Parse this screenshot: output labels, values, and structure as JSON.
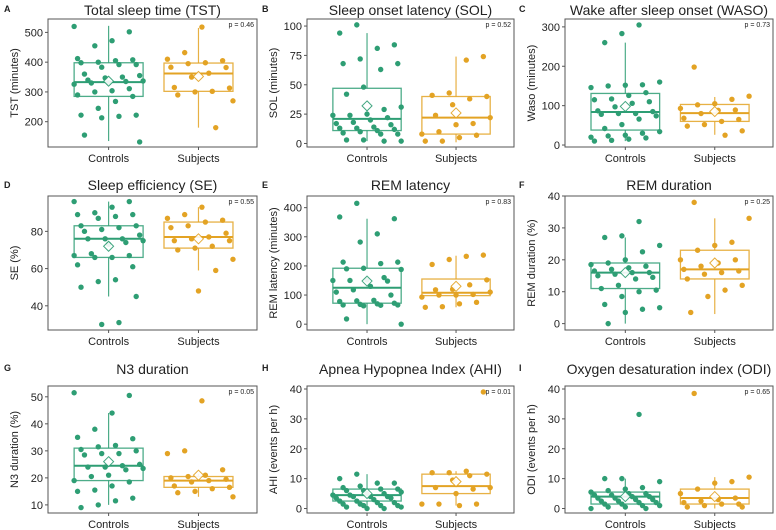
{
  "colors": {
    "controls": "#2e9e74",
    "subjects": "#e3a324",
    "axis": "#444444",
    "text": "#222222"
  },
  "chart_data": [
    {
      "panel": "A",
      "type": "box",
      "title": "Total sleep time (TST)",
      "ylabel": "TST (minutes)",
      "categories": [
        "Controls",
        "Subjects"
      ],
      "p_label": "p = 0.46",
      "ylim": [
        115,
        545
      ],
      "yticks": [
        200,
        300,
        400,
        500
      ],
      "series": [
        {
          "name": "Controls",
          "box": {
            "whislo": 135,
            "q1": 285,
            "median": 333,
            "q3": 398,
            "whishi": 522,
            "mean": 336
          },
          "points": [
            520,
            502,
            472,
            455,
            412,
            408,
            405,
            400,
            398,
            392,
            392,
            383,
            360,
            355,
            350,
            347,
            340,
            337,
            335,
            331,
            330,
            326,
            311,
            304,
            300,
            290,
            285,
            268,
            245,
            222,
            222,
            218,
            213,
            155,
            132
          ]
        },
        {
          "name": "Subjects",
          "box": {
            "whislo": 180,
            "q1": 302,
            "median": 362,
            "q3": 397,
            "whishi": 515,
            "mean": 352
          },
          "points": [
            518,
            432,
            410,
            405,
            398,
            395,
            383,
            382,
            363,
            350,
            315,
            313,
            302,
            300,
            290,
            270,
            180
          ]
        }
      ]
    },
    {
      "panel": "B",
      "type": "box",
      "title": "Sleep onset latency (SOL)",
      "ylabel": "SOL (minutes)",
      "categories": [
        "Controls",
        "Subjects"
      ],
      "p_label": "p = 0.52",
      "ylim": [
        -3,
        106
      ],
      "yticks": [
        0,
        25,
        50,
        75,
        100
      ],
      "series": [
        {
          "name": "Controls",
          "box": {
            "whislo": 2,
            "q1": 11,
            "median": 21,
            "q3": 47,
            "whishi": 94,
            "mean": 32
          },
          "points": [
            101,
            94,
            84,
            81,
            72,
            68,
            68,
            63,
            48,
            42,
            31,
            29,
            25,
            24,
            24,
            22,
            20,
            18,
            17,
            16,
            14,
            13,
            13,
            12,
            11,
            10,
            9,
            8,
            8,
            3,
            3,
            2,
            2
          ]
        },
        {
          "name": "Subjects",
          "box": {
            "whislo": 1,
            "q1": 8,
            "median": 22,
            "q3": 40,
            "whishi": 74,
            "mean": 26
          },
          "points": [
            74,
            71,
            43,
            41,
            40,
            38,
            33,
            24,
            22,
            17,
            16,
            10,
            8,
            7,
            5,
            2,
            2
          ]
        }
      ]
    },
    {
      "panel": "C",
      "type": "box",
      "title": "Wake after sleep onset (WASO)",
      "ylabel": "Waso (minutes)",
      "categories": [
        "Controls",
        "Subjects"
      ],
      "p_label": "p = 0.73",
      "ylim": [
        -5,
        320
      ],
      "yticks": [
        0,
        100,
        200,
        300
      ],
      "series": [
        {
          "name": "Controls",
          "box": {
            "whislo": 10,
            "q1": 38,
            "median": 84,
            "q3": 131,
            "whishi": 260,
            "mean": 98
          },
          "points": [
            305,
            283,
            260,
            160,
            153,
            152,
            150,
            146,
            133,
            126,
            117,
            115,
            110,
            106,
            97,
            87,
            85,
            80,
            80,
            78,
            74,
            66,
            52,
            42,
            34,
            30,
            25,
            23,
            20,
            18,
            15,
            12,
            10
          ]
        },
        {
          "name": "Subjects",
          "box": {
            "whislo": 26,
            "q1": 60,
            "median": 81,
            "q3": 103,
            "whishi": 122,
            "mean": 85
          },
          "points": [
            198,
            124,
            116,
            105,
            102,
            93,
            89,
            88,
            80,
            68,
            65,
            60,
            52,
            48,
            36,
            25
          ]
        }
      ]
    },
    {
      "panel": "D",
      "type": "box",
      "title": "Sleep efficiency (SE)",
      "ylabel": "SE (%)",
      "categories": [
        "Controls",
        "Subjects"
      ],
      "p_label": "p = 0.55",
      "ylim": [
        27,
        99
      ],
      "yticks": [
        40,
        60,
        80
      ],
      "series": [
        {
          "name": "Controls",
          "box": {
            "whislo": 45,
            "q1": 66,
            "median": 76,
            "q3": 83,
            "whishi": 96,
            "mean": 72
          },
          "points": [
            96,
            96,
            93,
            90,
            89,
            89,
            88,
            87,
            83,
            83,
            82,
            81,
            80,
            78,
            76,
            76,
            76,
            75,
            74,
            73,
            68,
            67,
            67,
            66,
            66,
            62,
            61,
            54,
            53,
            50,
            45,
            31,
            30
          ]
        },
        {
          "name": "Subjects",
          "box": {
            "whislo": 59,
            "q1": 71,
            "median": 77,
            "q3": 85,
            "whishi": 93,
            "mean": 76
          },
          "points": [
            93,
            89,
            87,
            86,
            85,
            83,
            82,
            79,
            77,
            76,
            75,
            75,
            72,
            71,
            70,
            65,
            59,
            48
          ]
        }
      ]
    },
    {
      "panel": "E",
      "type": "box",
      "title": "REM latency",
      "ylabel": "REM latency (minutes)",
      "categories": [
        "Controls",
        "Subjects"
      ],
      "p_label": "p = 0.83",
      "ylim": [
        -20,
        440
      ],
      "yticks": [
        0,
        100,
        200,
        300,
        400
      ],
      "series": [
        {
          "name": "Controls",
          "box": {
            "whislo": 0,
            "q1": 72,
            "median": 125,
            "q3": 192,
            "whishi": 362,
            "mean": 148
          },
          "points": [
            415,
            368,
            362,
            310,
            282,
            213,
            213,
            208,
            192,
            190,
            188,
            160,
            152,
            150,
            150,
            148,
            130,
            118,
            110,
            100,
            82,
            80,
            78,
            72,
            70,
            68,
            66,
            66,
            65,
            63,
            18,
            0
          ]
        },
        {
          "name": "Subjects",
          "box": {
            "whislo": 58,
            "q1": 98,
            "median": 108,
            "q3": 155,
            "whishi": 235,
            "mean": 130
          },
          "points": [
            237,
            233,
            222,
            205,
            152,
            135,
            120,
            118,
            110,
            102,
            100,
            100,
            93,
            75,
            70,
            60,
            58
          ]
        }
      ]
    },
    {
      "panel": "F",
      "type": "box",
      "title": "REM duration",
      "ylabel": "REM duration (%)",
      "categories": [
        "Controls",
        "Subjects"
      ],
      "p_label": "p = 0.25",
      "ylim": [
        -2,
        40
      ],
      "yticks": [
        0,
        10,
        20,
        30,
        40
      ],
      "series": [
        {
          "name": "Controls",
          "box": {
            "whislo": 0,
            "q1": 11,
            "median": 16,
            "q3": 19,
            "whishi": 27,
            "mean": 16
          },
          "points": [
            32,
            27.5,
            27,
            24.5,
            22.5,
            20,
            19,
            18.5,
            18,
            17.5,
            17,
            16.5,
            16,
            16,
            15.5,
            15,
            14.5,
            14,
            12,
            11,
            10.5,
            10,
            8.5,
            6,
            5,
            4.5,
            3.5,
            0
          ]
        },
        {
          "name": "Subjects",
          "box": {
            "whislo": 3,
            "q1": 14,
            "median": 17,
            "q3": 23,
            "whishi": 33,
            "mean": 19
          },
          "points": [
            38,
            33,
            25.5,
            24.5,
            23,
            20,
            20,
            19,
            18,
            17,
            16.5,
            16,
            15.5,
            14,
            12,
            10.5,
            8.5,
            3.5
          ]
        }
      ]
    },
    {
      "panel": "G",
      "type": "box",
      "title": "N3 duration",
      "ylabel": "N3 duration (%)",
      "categories": [
        "Controls",
        "Subjects"
      ],
      "p_label": "p = 0.05",
      "ylim": [
        7,
        54
      ],
      "yticks": [
        10,
        20,
        30,
        40,
        50
      ],
      "series": [
        {
          "name": "Controls",
          "box": {
            "whislo": 10,
            "q1": 19,
            "median": 24.5,
            "q3": 31,
            "whishi": 44,
            "mean": 26
          },
          "points": [
            51.5,
            50.5,
            44,
            38,
            35,
            34.5,
            32,
            31.5,
            30.5,
            30,
            29,
            29,
            28.5,
            25,
            24.5,
            24,
            24,
            23.5,
            23,
            21,
            20.5,
            19,
            18.5,
            17,
            15.5,
            15,
            12.5,
            11.5,
            10,
            9
          ]
        },
        {
          "name": "Subjects",
          "box": {
            "whislo": 13,
            "q1": 16.5,
            "median": 19,
            "q3": 20.5,
            "whishi": 21.5,
            "mean": 21
          },
          "points": [
            48.5,
            30,
            29,
            23,
            21,
            20.5,
            20,
            19.5,
            19,
            18.5,
            17,
            16.5,
            16,
            15,
            14.5,
            13
          ]
        }
      ]
    },
    {
      "panel": "H",
      "type": "box",
      "title": "Apnea Hypopnea Index (AHI)",
      "ylabel": "AHI (events per h)",
      "categories": [
        "Controls",
        "Subjects"
      ],
      "p_label": "p = 0.01",
      "ylim": [
        -1.5,
        41
      ],
      "yticks": [
        0,
        10,
        20,
        30,
        40
      ],
      "series": [
        {
          "name": "Controls",
          "box": {
            "whislo": 0,
            "q1": 2.5,
            "median": 4.5,
            "q3": 6.5,
            "whishi": 11.5,
            "mean": 5
          },
          "points": [
            11.5,
            10,
            8.5,
            8.5,
            7.5,
            7,
            6.5,
            6.5,
            6,
            6,
            5.5,
            5,
            5,
            4.5,
            4.5,
            4,
            4,
            4,
            3.5,
            3.5,
            3,
            2.5,
            2.5,
            2,
            2,
            1.5,
            1.5,
            1,
            1,
            1,
            0.5,
            0.5,
            0,
            0
          ]
        },
        {
          "name": "Subjects",
          "box": {
            "whislo": 1,
            "q1": 5,
            "median": 7.5,
            "q3": 11.5,
            "whishi": 12.5,
            "mean": 9
          },
          "points": [
            39,
            12.5,
            12,
            12,
            11.5,
            11,
            9.5,
            7,
            7,
            6.5,
            5,
            1.5,
            1.5,
            1.5,
            1
          ]
        }
      ]
    },
    {
      "panel": "I",
      "type": "box",
      "title": "Oxygen desaturation index (ODI)",
      "ylabel": "ODI (events per h)",
      "categories": [
        "Controls",
        "Subjects"
      ],
      "p_label": "p = 0.65",
      "ylim": [
        -1.5,
        41
      ],
      "yticks": [
        0,
        10,
        20,
        30,
        40
      ],
      "series": [
        {
          "name": "Controls",
          "box": {
            "whislo": 0,
            "q1": 1.5,
            "median": 4,
            "q3": 5.5,
            "whishi": 10,
            "mean": 4
          },
          "points": [
            31.5,
            10,
            10,
            9,
            7,
            6.5,
            6,
            5.5,
            5,
            5,
            4.5,
            4.5,
            4,
            4,
            3.5,
            3.5,
            3,
            3,
            2.5,
            2.5,
            2,
            2,
            1.5,
            1.5,
            1,
            1,
            0.5,
            0.5,
            0,
            0
          ]
        },
        {
          "name": "Subjects",
          "box": {
            "whislo": 0,
            "q1": 1.5,
            "median": 3.5,
            "q3": 6.5,
            "whishi": 10.5,
            "mean": 4
          },
          "points": [
            38.5,
            10.5,
            9,
            8.5,
            6.5,
            5,
            3.5,
            3,
            2.5,
            2,
            1.5,
            1.5,
            1,
            0.5,
            0.5
          ]
        }
      ]
    }
  ]
}
